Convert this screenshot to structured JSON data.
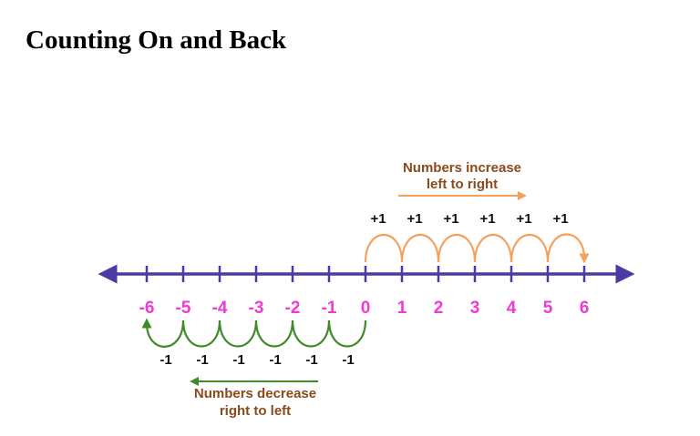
{
  "title": "Counting On and Back",
  "number_line": {
    "ticks": [
      -6,
      -5,
      -4,
      -3,
      -2,
      -1,
      0,
      1,
      2,
      3,
      4,
      5,
      6
    ],
    "tick_labels": [
      "-6",
      "-5",
      "-4",
      "-3",
      "-2",
      "-1",
      "0",
      "1",
      "2",
      "3",
      "4",
      "5",
      "6"
    ]
  },
  "increase": {
    "caption_line1": "Numbers increase",
    "caption_line2": "left to right",
    "step_labels": [
      "+1",
      "+1",
      "+1",
      "+1",
      "+1",
      "+1"
    ]
  },
  "decrease": {
    "caption_line1": "Numbers decrease",
    "caption_line2": "right to left",
    "step_labels": [
      "-1",
      "-1",
      "-1",
      "-1",
      "-1",
      "-1"
    ]
  },
  "colors": {
    "line": "#4a3aa6",
    "tick_labels": "#f03ad6",
    "increase_arc": "#f5a15a",
    "increase_text": "#8a4a1c",
    "decrease_arc": "#3f8a2c",
    "decrease_text": "#8a4a1c",
    "step_text": "#111111"
  }
}
